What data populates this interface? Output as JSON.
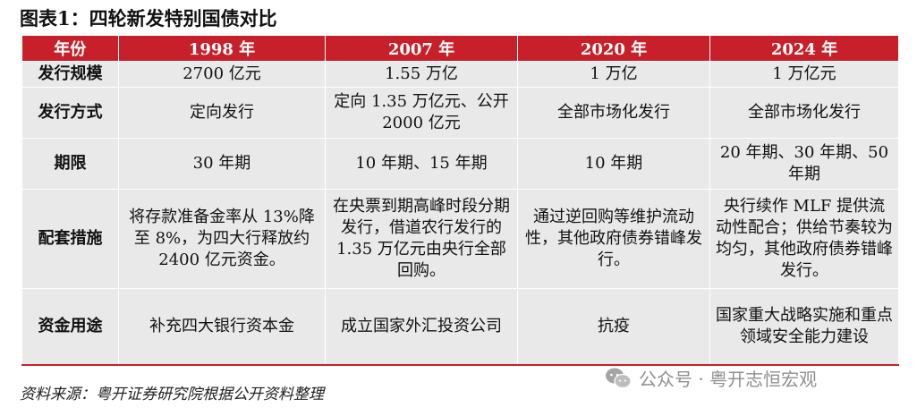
{
  "title": "图表1：四轮新发特别国债对比",
  "headers": [
    "年份",
    "1998 年",
    "2007 年",
    "2020 年",
    "2024 年"
  ],
  "rows": [
    {
      "label": "发行规模",
      "cells": [
        "2700 亿元",
        "1.55 万亿",
        "1 万亿",
        "1 万亿元"
      ]
    },
    {
      "label": "发行方式",
      "cells": [
        "定向发行",
        "定向 1.35 万亿元、公开 2000 亿元",
        "全部市场化发行",
        "全部市场化发行"
      ]
    },
    {
      "label": "期限",
      "cells": [
        "30 年期",
        "10 年期、15 年期",
        "10 年期",
        "20 年期、30 年期、50 年期"
      ]
    },
    {
      "label": "配套措施",
      "cells": [
        "将存款准备金率从 13%降至 8%，为四大行释放约 2400 亿元资金。",
        "在央票到期高峰时段分期发行，借道农行发行的 1.35 万亿元由央行全部回购。",
        "通过逆回购等维护流动性，其他政府债券错峰发行。",
        "央行续作 MLF 提供流动性配合；供给节奏较为均匀，其他政府债券错峰发行。"
      ]
    },
    {
      "label": "资金用途",
      "cells": [
        "补充四大银行资本金",
        "成立国家外汇投资公司",
        "抗疫",
        "国家重大战略实施和重点领域安全能力建设"
      ]
    }
  ],
  "source": "资料来源：粤开证券研究院根据公开资料整理",
  "watermark": {
    "text": "公众号 · 粤开志恒宏观",
    "icon": "wechat-icon"
  },
  "colors": {
    "header_bg": "#c8202a",
    "cell_bg": "#e9e9e9",
    "watermark": "#8f8f8f"
  }
}
